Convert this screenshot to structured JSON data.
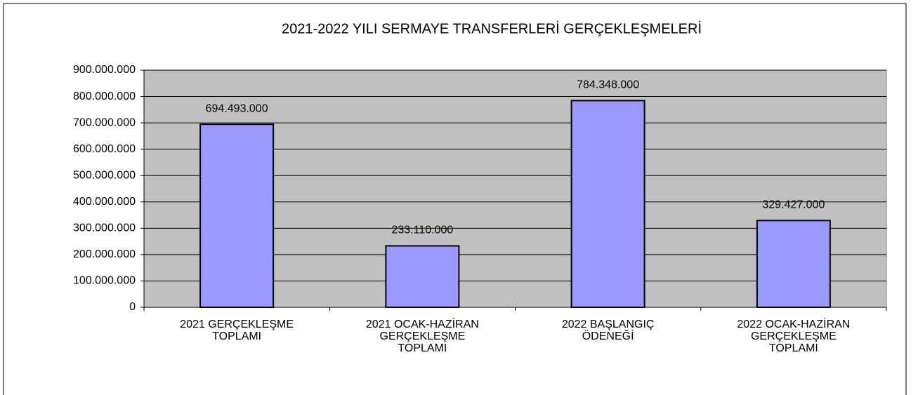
{
  "chart_data": {
    "type": "bar",
    "title": "2021-2022 YILI SERMAYE TRANSFERLERİ  GERÇEKLEŞMELERİ",
    "categories": [
      "2021 GERÇEKLEŞME TOPLAMI",
      "2021 OCAK-HAZİRAN GERÇEKLEŞME TOPLAMI",
      "2022 BAŞLANGIÇ ÖDENEĞİ",
      "2022 OCAK-HAZİRAN GERÇEKLEŞME TOPLAMI"
    ],
    "values": [
      694493000,
      233110000,
      784348000,
      329427000
    ],
    "value_labels": [
      "694.493.000",
      "233.110.000",
      "784.348.000",
      "329.427.000"
    ],
    "color": "#9999ff",
    "ylim": [
      0,
      900000000
    ],
    "yticks": [
      0,
      {
        "value": 100000000,
        "label": "100.000.000"
      },
      {
        "value": 200000000,
        "label": "200.000.000"
      },
      {
        "value": 300000000,
        "label": "300.000.000"
      },
      {
        "value": 400000000,
        "label": "400.000.000"
      },
      {
        "value": 500000000,
        "label": "500.000.000"
      },
      {
        "value": 600000000,
        "label": "600.000.000"
      },
      {
        "value": 700000000,
        "label": "700.000.000"
      },
      {
        "value": 800000000,
        "label": "800.000.000"
      },
      {
        "value": 900000000,
        "label": "900.000.000"
      }
    ],
    "grid": true
  }
}
